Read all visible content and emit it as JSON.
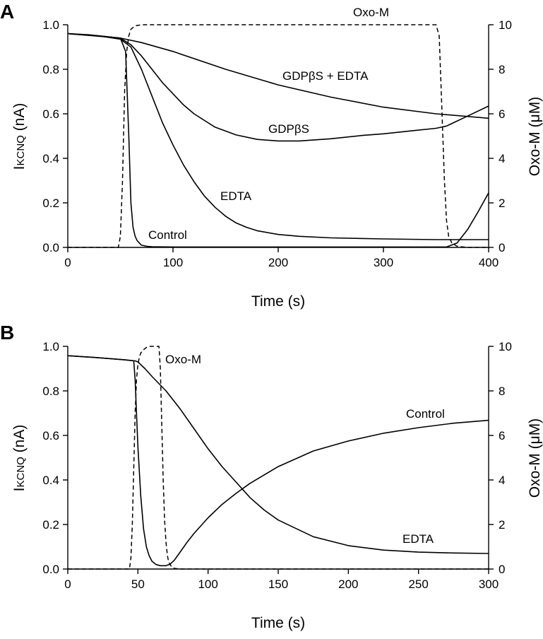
{
  "chart_data": [
    {
      "panel": "A",
      "type": "line",
      "xlabel": "Time (s)",
      "ylabel": "I",
      "ylabel_subscript": "KCNQ",
      "ylabel_unit": " (nA)",
      "y2label": "Oxo-M (",
      "y2label_mu": "μ",
      "y2label_unit": "M)",
      "xlim": [
        0,
        400
      ],
      "ylim": [
        0,
        1.0
      ],
      "y2lim": [
        0,
        10
      ],
      "xticks": [
        0,
        100,
        200,
        300,
        400
      ],
      "yticks": [
        "0.0",
        "0.2",
        "0.4",
        "0.6",
        "0.8",
        "1.0"
      ],
      "y2ticks": [
        0,
        2,
        4,
        6,
        8,
        10
      ],
      "grid": false,
      "series": [
        {
          "name": "Control",
          "axis": "left",
          "style": "solid",
          "x": [
            0,
            20,
            40,
            50,
            55,
            58,
            60,
            62,
            64,
            66,
            68,
            70,
            75,
            80,
            100,
            200,
            300,
            360,
            370,
            380,
            390,
            400
          ],
          "y": [
            0.96,
            0.955,
            0.945,
            0.94,
            0.88,
            0.5,
            0.2,
            0.09,
            0.05,
            0.03,
            0.02,
            0.01,
            0.005,
            0.003,
            0.002,
            0.002,
            0.002,
            0.002,
            0.02,
            0.08,
            0.16,
            0.245
          ]
        },
        {
          "name": "EDTA",
          "axis": "left",
          "style": "solid",
          "x": [
            0,
            30,
            50,
            60,
            70,
            80,
            90,
            100,
            110,
            120,
            130,
            140,
            150,
            160,
            170,
            180,
            200,
            220,
            250,
            300,
            350,
            400
          ],
          "y": [
            0.96,
            0.95,
            0.935,
            0.9,
            0.8,
            0.68,
            0.56,
            0.46,
            0.37,
            0.295,
            0.23,
            0.18,
            0.14,
            0.11,
            0.09,
            0.075,
            0.058,
            0.05,
            0.043,
            0.038,
            0.035,
            0.035
          ]
        },
        {
          "name": "GDPβS",
          "axis": "left",
          "style": "solid",
          "x": [
            0,
            30,
            50,
            60,
            70,
            80,
            90,
            100,
            110,
            120,
            140,
            160,
            180,
            200,
            220,
            250,
            280,
            300,
            330,
            350,
            360,
            380,
            400
          ],
          "y": [
            0.96,
            0.95,
            0.94,
            0.91,
            0.86,
            0.8,
            0.74,
            0.69,
            0.64,
            0.6,
            0.54,
            0.505,
            0.485,
            0.478,
            0.478,
            0.488,
            0.503,
            0.51,
            0.525,
            0.535,
            0.545,
            0.59,
            0.635
          ]
        },
        {
          "name": "GDPβS + EDTA",
          "axis": "left",
          "style": "solid",
          "x": [
            0,
            50,
            70,
            100,
            150,
            200,
            250,
            300,
            350,
            400
          ],
          "y": [
            0.96,
            0.94,
            0.92,
            0.88,
            0.8,
            0.73,
            0.675,
            0.63,
            0.6,
            0.58
          ]
        },
        {
          "name": "Oxo-M",
          "axis": "right",
          "style": "dashed",
          "x": [
            0,
            48,
            50,
            52,
            54,
            56,
            58,
            60,
            64,
            70,
            350,
            353,
            355,
            358,
            360,
            362,
            365,
            370,
            380,
            400
          ],
          "y": [
            0,
            0,
            0.5,
            3,
            7,
            8.8,
            9.5,
            9.8,
            9.95,
            10,
            10,
            9.5,
            7,
            3,
            1.2,
            0.5,
            0.2,
            0.05,
            0,
            0
          ]
        }
      ]
    },
    {
      "panel": "B",
      "type": "line",
      "xlabel": "Time (s)",
      "ylabel": "I",
      "ylabel_subscript": "KCNQ",
      "ylabel_unit": " (nA)",
      "y2label": "Oxo-M (",
      "y2label_mu": "μ",
      "y2label_unit": "M)",
      "xlim": [
        0,
        300
      ],
      "ylim": [
        0,
        1.0
      ],
      "y2lim": [
        0,
        10
      ],
      "xticks": [
        0,
        50,
        100,
        150,
        200,
        250,
        300
      ],
      "yticks": [
        "0.0",
        "0.2",
        "0.4",
        "0.6",
        "0.8",
        "1.0"
      ],
      "y2ticks": [
        0,
        2,
        4,
        6,
        8,
        10
      ],
      "grid": false,
      "series": [
        {
          "name": "Control",
          "axis": "left",
          "style": "solid",
          "x": [
            0,
            20,
            40,
            47,
            48,
            49,
            50,
            52,
            54,
            56,
            58,
            60,
            63,
            66,
            70,
            73,
            76,
            80,
            85,
            90,
            100,
            110,
            120,
            130,
            150,
            175,
            200,
            225,
            250,
            275,
            300
          ],
          "y": [
            0.958,
            0.95,
            0.94,
            0.935,
            0.85,
            0.7,
            0.55,
            0.33,
            0.18,
            0.1,
            0.06,
            0.035,
            0.02,
            0.015,
            0.015,
            0.022,
            0.04,
            0.075,
            0.12,
            0.16,
            0.23,
            0.29,
            0.34,
            0.385,
            0.46,
            0.53,
            0.575,
            0.61,
            0.635,
            0.655,
            0.668
          ]
        },
        {
          "name": "EDTA",
          "axis": "left",
          "style": "solid",
          "x": [
            0,
            20,
            40,
            48,
            50,
            55,
            60,
            70,
            80,
            90,
            100,
            110,
            120,
            130,
            140,
            150,
            175,
            200,
            225,
            250,
            275,
            300
          ],
          "y": [
            0.958,
            0.95,
            0.94,
            0.935,
            0.93,
            0.9,
            0.865,
            0.8,
            0.72,
            0.63,
            0.54,
            0.46,
            0.39,
            0.32,
            0.265,
            0.22,
            0.145,
            0.105,
            0.085,
            0.076,
            0.072,
            0.07
          ]
        },
        {
          "name": "Oxo-M",
          "axis": "right",
          "style": "dashed",
          "x": [
            0,
            44,
            45,
            46,
            47,
            48,
            49,
            50,
            51,
            52,
            54,
            56,
            58,
            60,
            63,
            65,
            66,
            67,
            68,
            69,
            70,
            71,
            72,
            74,
            76,
            80,
            300
          ],
          "y": [
            0,
            0,
            0.5,
            2,
            4.5,
            7,
            8.5,
            9.2,
            9.5,
            9.7,
            9.85,
            9.95,
            10,
            10,
            10,
            10,
            9,
            6.5,
            4,
            2.2,
            1.2,
            0.6,
            0.3,
            0.1,
            0.03,
            0,
            0
          ]
        }
      ]
    }
  ]
}
